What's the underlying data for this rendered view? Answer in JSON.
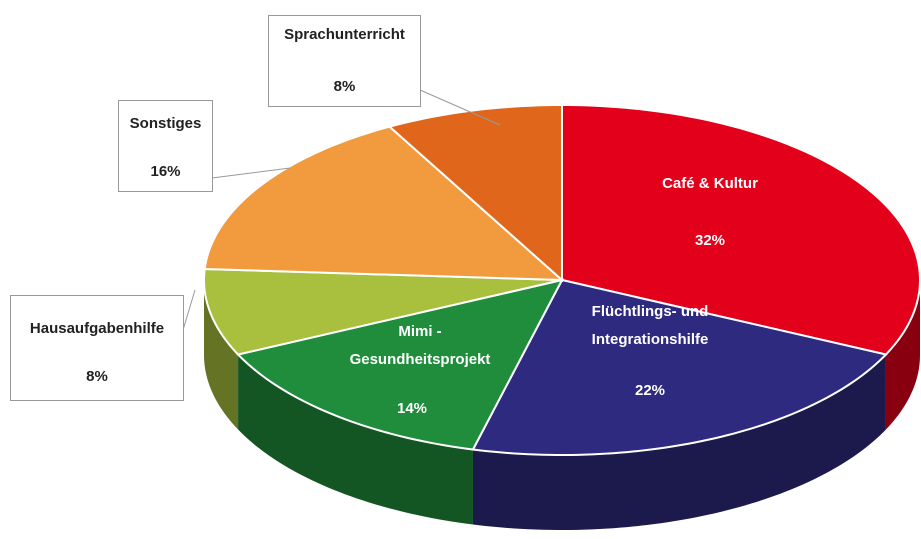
{
  "chart_data": {
    "type": "pie",
    "categories": [
      "Café & Kultur",
      "Flüchtlings- und Integrationshilfe",
      "Mimi - Gesundheitsprojekt",
      "Hausaufgabenhilfe",
      "Sonstiges",
      "Sprachunterricht"
    ],
    "values": [
      32,
      22,
      14,
      8,
      16,
      8
    ],
    "value_labels": [
      "32%",
      "22%",
      "14%",
      "8%",
      "16%",
      "8%"
    ],
    "colors": [
      "#e3001b",
      "#2e2a80",
      "#1f8d3b",
      "#a8c03e",
      "#f29a3e",
      "#e0661b"
    ],
    "three_d": true
  }
}
